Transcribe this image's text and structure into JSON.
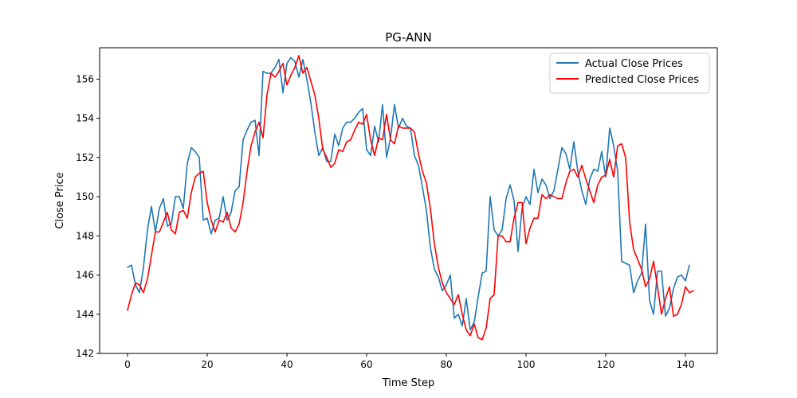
{
  "chart_data": {
    "type": "line",
    "title": "PG-ANN",
    "xlabel": "Time Step",
    "ylabel": "Close Price",
    "xlim": [
      -7,
      148
    ],
    "ylim": [
      142,
      157.6
    ],
    "xticks": [
      0,
      20,
      40,
      60,
      80,
      100,
      120,
      140
    ],
    "yticks": [
      142,
      144,
      146,
      148,
      150,
      152,
      154,
      156
    ],
    "grid": false,
    "legend_position": "top-right",
    "series": [
      {
        "name": "Actual Close Prices",
        "color": "#1f77b4",
        "values": [
          146.4,
          146.5,
          145.5,
          145.1,
          146.4,
          148.3,
          149.5,
          148.2,
          149.4,
          149.9,
          148.5,
          148.6,
          150.0,
          150.0,
          149.4,
          151.7,
          152.5,
          152.3,
          152.0,
          148.8,
          148.9,
          148.1,
          148.8,
          148.9,
          150.0,
          148.8,
          149.2,
          150.3,
          150.5,
          152.9,
          153.4,
          153.8,
          153.9,
          152.1,
          156.4,
          156.3,
          156.3,
          156.6,
          157.0,
          155.3,
          156.8,
          157.1,
          156.9,
          156.1,
          157.0,
          156.0,
          154.8,
          153.3,
          152.1,
          152.5,
          151.8,
          151.8,
          153.2,
          152.6,
          153.5,
          153.8,
          153.8,
          154.0,
          154.3,
          154.5,
          152.4,
          152.1,
          153.6,
          152.8,
          154.7,
          152.0,
          153.0,
          154.7,
          153.5,
          154.0,
          153.6,
          153.5,
          152.1,
          151.6,
          150.5,
          149.3,
          147.4,
          146.3,
          145.9,
          145.2,
          145.5,
          146.0,
          143.8,
          144.0,
          143.4,
          144.8,
          143.2,
          143.6,
          144.9,
          146.1,
          146.2,
          150.0,
          148.3,
          148.0,
          148.3,
          149.9,
          150.6,
          149.8,
          147.2,
          149.4,
          150.0,
          149.6,
          151.4,
          150.2,
          150.9,
          150.6,
          149.9,
          150.3,
          151.4,
          152.5,
          152.2,
          151.4,
          152.8,
          151.3,
          150.3,
          149.6,
          150.9,
          151.4,
          151.3,
          152.3,
          151.0,
          153.5,
          152.6,
          151.3,
          146.7,
          146.6,
          146.5,
          145.1,
          145.7,
          146.1,
          148.6,
          144.7,
          144.0,
          146.2,
          146.2,
          143.9,
          144.3,
          145.3,
          145.9,
          146.0,
          145.7,
          146.5
        ]
      },
      {
        "name": "Predicted Close Prices",
        "color": "#ff0000",
        "values": [
          144.2,
          145.0,
          145.6,
          145.5,
          145.1,
          145.8,
          147.0,
          148.2,
          148.2,
          148.7,
          149.2,
          148.3,
          148.1,
          149.2,
          149.3,
          148.9,
          150.2,
          151.0,
          151.2,
          151.3,
          149.7,
          148.8,
          148.2,
          148.8,
          148.7,
          149.2,
          148.4,
          148.2,
          148.6,
          149.7,
          151.3,
          152.6,
          153.3,
          153.8,
          153.0,
          155.2,
          156.3,
          156.1,
          156.4,
          156.8,
          155.7,
          156.2,
          156.6,
          157.2,
          156.3,
          156.6,
          155.9,
          155.2,
          154.0,
          152.4,
          152.0,
          151.5,
          151.7,
          152.4,
          152.3,
          152.8,
          152.9,
          153.4,
          153.8,
          153.7,
          154.2,
          152.9,
          152.1,
          153.0,
          152.9,
          154.2,
          152.9,
          152.7,
          153.6,
          153.5,
          153.5,
          153.5,
          153.3,
          152.2,
          151.3,
          150.7,
          149.4,
          147.6,
          146.4,
          145.6,
          145.1,
          144.8,
          144.5,
          145.0,
          144.0,
          143.2,
          142.9,
          143.5,
          142.8,
          142.7,
          143.3,
          144.8,
          145.0,
          148.0,
          148.0,
          147.7,
          147.7,
          148.9,
          149.7,
          149.7,
          147.6,
          148.4,
          148.9,
          148.9,
          150.1,
          149.9,
          150.1,
          150.0,
          149.9,
          149.9,
          150.7,
          151.3,
          151.4,
          151.0,
          151.6,
          150.9,
          150.3,
          149.7,
          150.6,
          151.0,
          151.1,
          151.9,
          151.0,
          152.6,
          152.7,
          152.0,
          148.7,
          147.3,
          146.8,
          146.3,
          145.4,
          145.8,
          146.7,
          145.4,
          144.0,
          144.8,
          145.4,
          143.9,
          144.0,
          144.5,
          145.4,
          145.1,
          145.2
        ]
      }
    ]
  }
}
